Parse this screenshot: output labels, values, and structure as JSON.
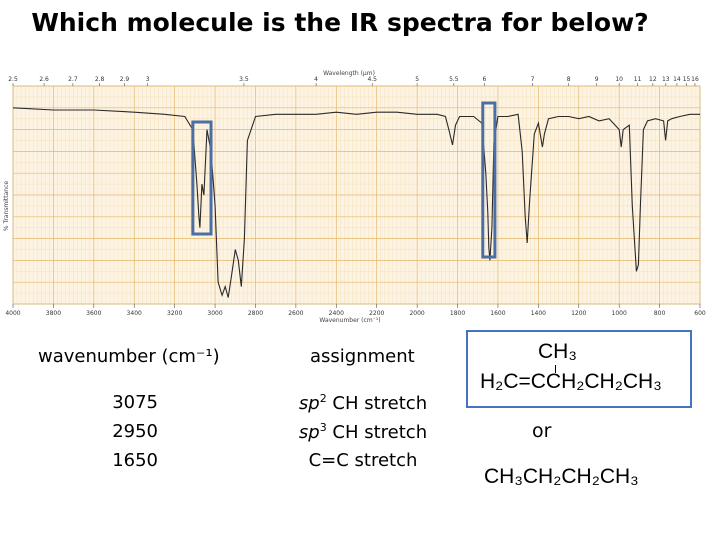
{
  "title": "Which molecule is the IR spectra for below?",
  "chart_data": {
    "type": "line",
    "title": "",
    "xlabel": "Wavenumber (cm⁻¹)",
    "x2label": "Wavelength (μm)",
    "ylabel": "% Transmittance",
    "xlim": [
      4000,
      600
    ],
    "x_ticks": [
      4000,
      3800,
      3600,
      3400,
      3200,
      3000,
      2800,
      2600,
      2400,
      2200,
      2000,
      1800,
      1600,
      1400,
      1200,
      1000,
      800,
      600
    ],
    "x_tick_labels": [
      "4000",
      "3800",
      "3600",
      "3400",
      "3200",
      "3000",
      "2800",
      "2600",
      "2400",
      "2200",
      "2000",
      "1800",
      "1600",
      "1400",
      "1200",
      "1000",
      "800",
      "600"
    ],
    "wavelength_ticks": [
      "2.5",
      "2.6",
      "2.7",
      "2.8",
      "2.9",
      "3",
      "3.5",
      "4",
      "4.5",
      "5",
      "5.5",
      "6",
      "7",
      "8",
      "9",
      "10",
      "11",
      "12",
      "13",
      "14",
      "15",
      "16"
    ],
    "wavelength_tick_values": [
      2.5,
      2.6,
      2.7,
      2.8,
      2.9,
      3,
      3.5,
      4,
      4.5,
      5,
      5.5,
      6,
      7,
      8,
      9,
      10,
      11,
      12,
      13,
      14,
      15,
      16
    ],
    "series": [
      {
        "points": [
          [
            4000,
            90
          ],
          [
            3800,
            89
          ],
          [
            3600,
            89
          ],
          [
            3400,
            88
          ],
          [
            3250,
            87
          ],
          [
            3150,
            86
          ],
          [
            3110,
            80
          ],
          [
            3090,
            55
          ],
          [
            3080,
            40
          ],
          [
            3075,
            35
          ],
          [
            3065,
            55
          ],
          [
            3055,
            50
          ],
          [
            3040,
            80
          ],
          [
            3020,
            70
          ],
          [
            3000,
            45
          ],
          [
            2985,
            10
          ],
          [
            2965,
            4
          ],
          [
            2950,
            8
          ],
          [
            2935,
            3
          ],
          [
            2920,
            12
          ],
          [
            2900,
            25
          ],
          [
            2885,
            20
          ],
          [
            2870,
            8
          ],
          [
            2855,
            30
          ],
          [
            2840,
            75
          ],
          [
            2800,
            86
          ],
          [
            2700,
            87
          ],
          [
            2600,
            87
          ],
          [
            2500,
            87
          ],
          [
            2400,
            88
          ],
          [
            2300,
            87
          ],
          [
            2200,
            88
          ],
          [
            2100,
            88
          ],
          [
            2000,
            87
          ],
          [
            1900,
            87
          ],
          [
            1860,
            86
          ],
          [
            1840,
            79
          ],
          [
            1825,
            73
          ],
          [
            1810,
            82
          ],
          [
            1790,
            86
          ],
          [
            1760,
            86
          ],
          [
            1720,
            86
          ],
          [
            1680,
            83
          ],
          [
            1660,
            60
          ],
          [
            1650,
            42
          ],
          [
            1645,
            26
          ],
          [
            1640,
            20
          ],
          [
            1630,
            35
          ],
          [
            1620,
            74
          ],
          [
            1600,
            86
          ],
          [
            1550,
            86
          ],
          [
            1500,
            87
          ],
          [
            1480,
            70
          ],
          [
            1465,
            40
          ],
          [
            1455,
            28
          ],
          [
            1445,
            45
          ],
          [
            1430,
            65
          ],
          [
            1420,
            78
          ],
          [
            1400,
            83
          ],
          [
            1380,
            72
          ],
          [
            1370,
            78
          ],
          [
            1350,
            85
          ],
          [
            1300,
            86
          ],
          [
            1250,
            86
          ],
          [
            1200,
            85
          ],
          [
            1150,
            86
          ],
          [
            1100,
            84
          ],
          [
            1050,
            85
          ],
          [
            1000,
            80
          ],
          [
            990,
            72
          ],
          [
            980,
            80
          ],
          [
            950,
            82
          ],
          [
            935,
            45
          ],
          [
            915,
            15
          ],
          [
            905,
            18
          ],
          [
            895,
            45
          ],
          [
            880,
            80
          ],
          [
            860,
            84
          ],
          [
            820,
            85
          ],
          [
            780,
            84
          ],
          [
            770,
            75
          ],
          [
            760,
            84
          ],
          [
            740,
            85
          ],
          [
            700,
            86
          ],
          [
            650,
            87
          ],
          [
            600,
            87
          ]
        ]
      }
    ],
    "highlights": [
      {
        "from": 3110,
        "to": 3020
      },
      {
        "from": 1675,
        "to": 1615
      }
    ]
  },
  "table": {
    "col1_header": "wavenumber (cm⁻¹)",
    "col2_header": "assignment",
    "rows": [
      {
        "wavenumber": "3075",
        "prefix": "sp",
        "sup": "2",
        "rest": " CH stretch"
      },
      {
        "wavenumber": "2950",
        "prefix": "sp",
        "sup": "3",
        "rest": " CH stretch"
      },
      {
        "wavenumber": "1650",
        "prefix": "",
        "sup": "",
        "rest": "C=C stretch"
      }
    ]
  },
  "molecule1": {
    "branch": "CH₃",
    "main": "H₂C=CCH₂CH₂CH₃"
  },
  "or_text": "or",
  "molecule2": "CH₃CH₂CH₂CH₃",
  "colors": {
    "highlight": "#4a6fa5",
    "box": "#4472c4",
    "grid_minor": "#f3ddb0",
    "grid_major": "#e3b86b",
    "plot_bg": "#fdf3e3",
    "line": "#2a2a2a"
  }
}
